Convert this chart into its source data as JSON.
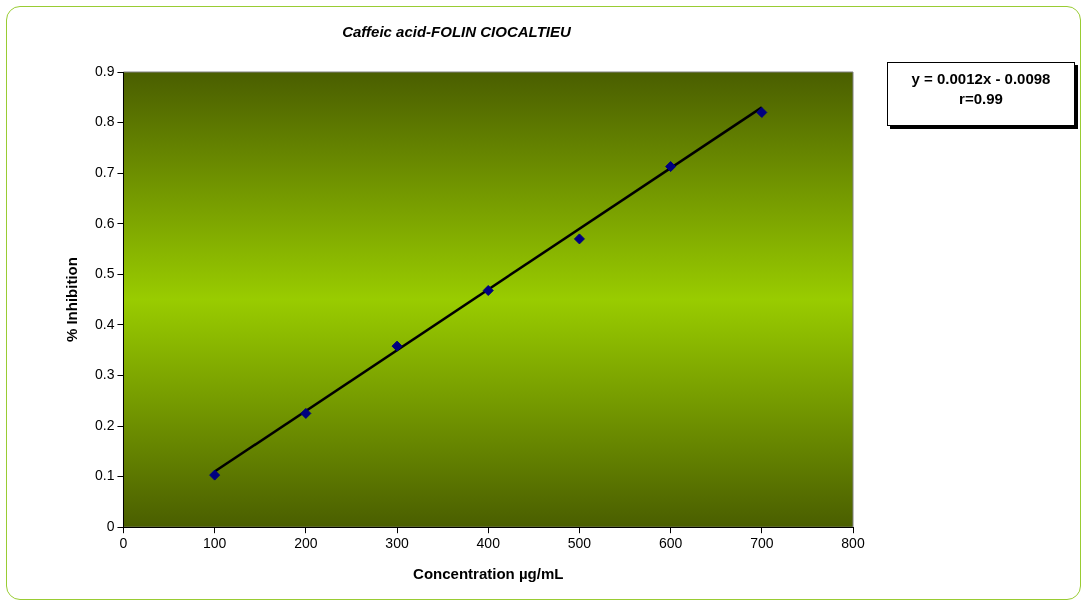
{
  "chart_data": {
    "type": "scatter",
    "title": "Caffeic acid-FOLIN CIOCALTIEU",
    "xlabel": "Concentration µg/mL",
    "ylabel": "% Inhibition",
    "x": [
      100,
      200,
      300,
      400,
      500,
      600,
      700
    ],
    "series": [
      {
        "color": "#000080",
        "values": [
          0.103,
          0.225,
          0.358,
          0.468,
          0.57,
          0.713,
          0.82
        ],
        "marker": "diamond"
      },
      {
        "type": "line",
        "color": "#000000",
        "x": [
          100,
          700
        ],
        "values": [
          0.11,
          0.83
        ]
      }
    ],
    "xlim": [
      0,
      800
    ],
    "xticks": [
      0,
      100,
      200,
      300,
      400,
      500,
      600,
      700,
      800
    ],
    "ylim": [
      0,
      0.9
    ],
    "yticks": [
      0,
      0.1,
      0.2,
      0.3,
      0.4,
      0.5,
      0.6,
      0.7,
      0.8,
      0.9
    ],
    "grid": false,
    "legend": false,
    "annotations": [
      "y = 0.0012x - 0.0098",
      "r=0.99"
    ]
  }
}
